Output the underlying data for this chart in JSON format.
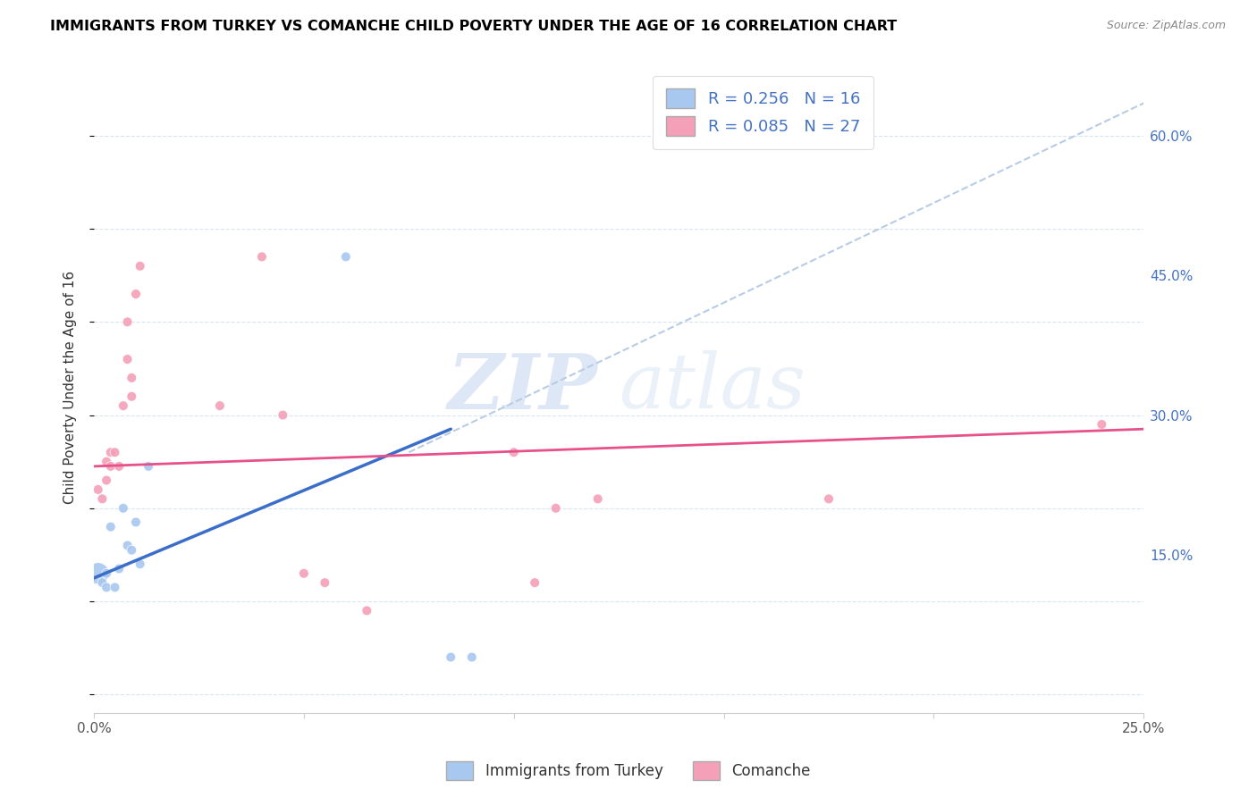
{
  "title": "IMMIGRANTS FROM TURKEY VS COMANCHE CHILD POVERTY UNDER THE AGE OF 16 CORRELATION CHART",
  "source": "Source: ZipAtlas.com",
  "ylabel": "Child Poverty Under the Age of 16",
  "ytick_labels": [
    "15.0%",
    "30.0%",
    "45.0%",
    "60.0%"
  ],
  "ytick_values": [
    0.15,
    0.3,
    0.45,
    0.6
  ],
  "xlim": [
    0.0,
    0.25
  ],
  "ylim": [
    -0.02,
    0.68
  ],
  "legend_label1": "Immigrants from Turkey",
  "legend_label2": "Comanche",
  "R1": 0.256,
  "N1": 16,
  "R2": 0.085,
  "N2": 27,
  "color_blue": "#A8C8F0",
  "color_pink": "#F4A0B8",
  "color_blue_line": "#3B6EC8",
  "color_blue_text": "#4472C4",
  "color_pink_line": "#E8508A",
  "color_dashed_line": "#B8CCE4",
  "watermark_zip": "ZIP",
  "watermark_atlas": "atlas",
  "blue_scatter_x": [
    0.001,
    0.002,
    0.003,
    0.003,
    0.004,
    0.005,
    0.006,
    0.007,
    0.008,
    0.009,
    0.01,
    0.011,
    0.013,
    0.06,
    0.085,
    0.09
  ],
  "blue_scatter_y": [
    0.13,
    0.12,
    0.115,
    0.13,
    0.18,
    0.115,
    0.135,
    0.2,
    0.16,
    0.155,
    0.185,
    0.14,
    0.245,
    0.47,
    0.04,
    0.04
  ],
  "blue_scatter_sizes": [
    300,
    60,
    60,
    60,
    60,
    60,
    60,
    60,
    60,
    60,
    60,
    60,
    60,
    60,
    60,
    60
  ],
  "pink_scatter_x": [
    0.001,
    0.002,
    0.003,
    0.003,
    0.004,
    0.004,
    0.005,
    0.006,
    0.007,
    0.008,
    0.008,
    0.009,
    0.009,
    0.01,
    0.011,
    0.03,
    0.04,
    0.045,
    0.05,
    0.055,
    0.065,
    0.1,
    0.105,
    0.11,
    0.12,
    0.175,
    0.24
  ],
  "pink_scatter_y": [
    0.22,
    0.21,
    0.23,
    0.25,
    0.245,
    0.26,
    0.26,
    0.245,
    0.31,
    0.36,
    0.4,
    0.32,
    0.34,
    0.43,
    0.46,
    0.31,
    0.47,
    0.3,
    0.13,
    0.12,
    0.09,
    0.26,
    0.12,
    0.2,
    0.21,
    0.21,
    0.29
  ],
  "pink_scatter_sizes": [
    60,
    60,
    60,
    60,
    60,
    60,
    60,
    60,
    60,
    60,
    60,
    60,
    60,
    60,
    60,
    60,
    60,
    60,
    60,
    60,
    60,
    60,
    60,
    60,
    60,
    60,
    60
  ],
  "blue_line_x": [
    0.0,
    0.085
  ],
  "blue_line_y": [
    0.125,
    0.285
  ],
  "pink_line_x": [
    0.0,
    0.25
  ],
  "pink_line_y": [
    0.245,
    0.285
  ],
  "dashed_line_x": [
    0.075,
    0.25
  ],
  "dashed_line_y": [
    0.26,
    0.635
  ],
  "xtick_positions": [
    0.0,
    0.05,
    0.1,
    0.15,
    0.2,
    0.25
  ],
  "xtick_labels": [
    "0.0%",
    "",
    "",
    "",
    "",
    "25.0%"
  ]
}
